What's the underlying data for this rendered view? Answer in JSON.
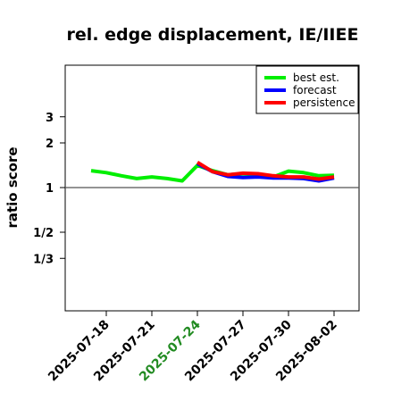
{
  "chart_data": {
    "type": "line",
    "title": "rel. edge displacement, IE/IIEE",
    "ylabel": "ratio score",
    "xlabel": "",
    "y_scale": "log2",
    "y_ticks": [
      {
        "value": 3,
        "label": "3"
      },
      {
        "value": 2,
        "label": "2"
      },
      {
        "value": 1,
        "label": "1"
      },
      {
        "value": 0.5,
        "label": "1/2"
      },
      {
        "value": 0.3333,
        "label": "1/3"
      }
    ],
    "x_tick_labels": [
      "2025-07-18",
      "2025-07-21",
      "2025-07-24",
      "2025-07-27",
      "2025-07-30",
      "2025-08-02"
    ],
    "highlight_tick": "2025-07-24",
    "highlight_color": "#228B22",
    "reference_line": 1,
    "legend_position": "top-right",
    "series": [
      {
        "name": "best est.",
        "color": "#00ee00",
        "x": [
          "2025-07-17",
          "2025-07-18",
          "2025-07-19",
          "2025-07-20",
          "2025-07-21",
          "2025-07-22",
          "2025-07-23",
          "2025-07-24",
          "2025-07-25",
          "2025-07-26",
          "2025-07-27",
          "2025-07-28",
          "2025-07-29",
          "2025-07-30",
          "2025-07-31",
          "2025-08-01",
          "2025-08-02"
        ],
        "values": [
          1.3,
          1.26,
          1.2,
          1.15,
          1.18,
          1.15,
          1.11,
          1.41,
          1.3,
          1.22,
          1.24,
          1.22,
          1.18,
          1.29,
          1.26,
          1.2,
          1.21
        ]
      },
      {
        "name": "forecast",
        "color": "#0000ff",
        "x": [
          "2025-07-24",
          "2025-07-25",
          "2025-07-26",
          "2025-07-27",
          "2025-07-28",
          "2025-07-29",
          "2025-07-30",
          "2025-07-31",
          "2025-08-01",
          "2025-08-02"
        ],
        "values": [
          1.45,
          1.28,
          1.19,
          1.17,
          1.18,
          1.16,
          1.16,
          1.15,
          1.11,
          1.16
        ]
      },
      {
        "name": "persistence",
        "color": "#ff0000",
        "x": [
          "2025-07-24",
          "2025-07-25",
          "2025-07-26",
          "2025-07-27",
          "2025-07-28",
          "2025-07-29",
          "2025-07-30",
          "2025-07-31",
          "2025-08-01",
          "2025-08-02"
        ],
        "values": [
          1.48,
          1.28,
          1.22,
          1.25,
          1.24,
          1.2,
          1.18,
          1.18,
          1.14,
          1.18
        ]
      }
    ]
  }
}
